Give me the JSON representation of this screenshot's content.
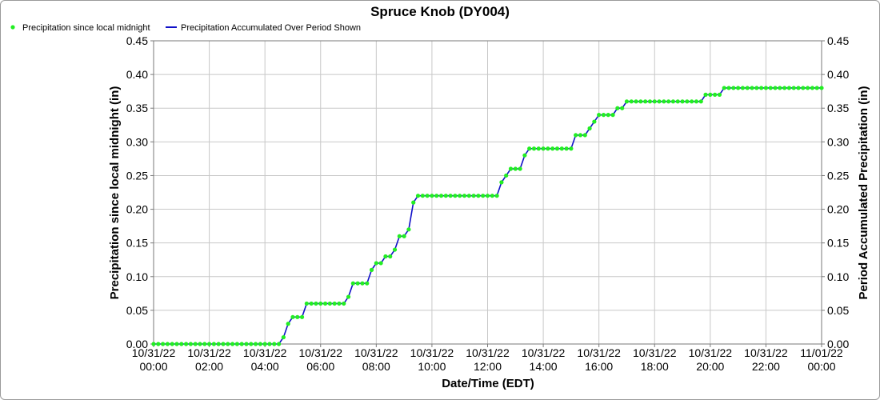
{
  "chart_data": {
    "type": "line",
    "title": "Spruce Knob (DY004)",
    "xlabel": "Date/Time (EDT)",
    "ylabel": "Precipitation since local midnight (in)",
    "y2label": "Period Accumulated Precipitation (in)",
    "ylim": [
      0,
      0.45
    ],
    "y2lim": [
      0,
      0.45
    ],
    "grid": true,
    "legend_position": "top-left",
    "y_ticks": [
      "0.00",
      "0.05",
      "0.10",
      "0.15",
      "0.20",
      "0.25",
      "0.30",
      "0.35",
      "0.40",
      "0.45"
    ],
    "x_ticks": [
      {
        "date": "10/31/22",
        "time": "00:00"
      },
      {
        "date": "10/31/22",
        "time": "02:00"
      },
      {
        "date": "10/31/22",
        "time": "04:00"
      },
      {
        "date": "10/31/22",
        "time": "06:00"
      },
      {
        "date": "10/31/22",
        "time": "08:00"
      },
      {
        "date": "10/31/22",
        "time": "10:00"
      },
      {
        "date": "10/31/22",
        "time": "12:00"
      },
      {
        "date": "10/31/22",
        "time": "14:00"
      },
      {
        "date": "10/31/22",
        "time": "16:00"
      },
      {
        "date": "10/31/22",
        "time": "18:00"
      },
      {
        "date": "10/31/22",
        "time": "20:00"
      },
      {
        "date": "10/31/22",
        "time": "22:00"
      },
      {
        "date": "11/01/22",
        "time": "00:00"
      }
    ],
    "series": [
      {
        "name": "Precipitation since local midnight",
        "style": "markers",
        "color": "#22ee22",
        "points": [
          [
            "00:00",
            0
          ],
          [
            "00:10",
            0
          ],
          [
            "00:20",
            0
          ],
          [
            "00:30",
            0
          ],
          [
            "00:40",
            0
          ],
          [
            "00:50",
            0
          ],
          [
            "01:00",
            0
          ],
          [
            "01:10",
            0
          ],
          [
            "01:20",
            0
          ],
          [
            "01:30",
            0
          ],
          [
            "01:40",
            0
          ],
          [
            "01:50",
            0
          ],
          [
            "02:00",
            0
          ],
          [
            "02:10",
            0
          ],
          [
            "02:20",
            0
          ],
          [
            "02:30",
            0
          ],
          [
            "02:40",
            0
          ],
          [
            "02:50",
            0
          ],
          [
            "03:00",
            0
          ],
          [
            "03:10",
            0
          ],
          [
            "03:20",
            0
          ],
          [
            "03:30",
            0
          ],
          [
            "03:40",
            0
          ],
          [
            "03:50",
            0
          ],
          [
            "04:00",
            0
          ],
          [
            "04:10",
            0
          ],
          [
            "04:20",
            0
          ],
          [
            "04:30",
            0
          ],
          [
            "04:40",
            0.01
          ],
          [
            "04:50",
            0.03
          ],
          [
            "05:00",
            0.04
          ],
          [
            "05:10",
            0.04
          ],
          [
            "05:20",
            0.04
          ],
          [
            "05:30",
            0.06
          ],
          [
            "05:40",
            0.06
          ],
          [
            "05:50",
            0.06
          ],
          [
            "06:00",
            0.06
          ],
          [
            "06:10",
            0.06
          ],
          [
            "06:20",
            0.06
          ],
          [
            "06:30",
            0.06
          ],
          [
            "06:40",
            0.06
          ],
          [
            "06:50",
            0.06
          ],
          [
            "07:00",
            0.07
          ],
          [
            "07:10",
            0.09
          ],
          [
            "07:20",
            0.09
          ],
          [
            "07:30",
            0.09
          ],
          [
            "07:40",
            0.09
          ],
          [
            "07:50",
            0.11
          ],
          [
            "08:00",
            0.12
          ],
          [
            "08:10",
            0.12
          ],
          [
            "08:20",
            0.13
          ],
          [
            "08:30",
            0.13
          ],
          [
            "08:40",
            0.14
          ],
          [
            "08:50",
            0.16
          ],
          [
            "09:00",
            0.16
          ],
          [
            "09:10",
            0.17
          ],
          [
            "09:20",
            0.21
          ],
          [
            "09:30",
            0.22
          ],
          [
            "09:40",
            0.22
          ],
          [
            "09:50",
            0.22
          ],
          [
            "10:00",
            0.22
          ],
          [
            "10:10",
            0.22
          ],
          [
            "10:20",
            0.22
          ],
          [
            "10:30",
            0.22
          ],
          [
            "10:40",
            0.22
          ],
          [
            "10:50",
            0.22
          ],
          [
            "11:00",
            0.22
          ],
          [
            "11:10",
            0.22
          ],
          [
            "11:20",
            0.22
          ],
          [
            "11:30",
            0.22
          ],
          [
            "11:40",
            0.22
          ],
          [
            "11:50",
            0.22
          ],
          [
            "12:00",
            0.22
          ],
          [
            "12:10",
            0.22
          ],
          [
            "12:20",
            0.22
          ],
          [
            "12:30",
            0.24
          ],
          [
            "12:40",
            0.25
          ],
          [
            "12:50",
            0.26
          ],
          [
            "13:00",
            0.26
          ],
          [
            "13:10",
            0.26
          ],
          [
            "13:20",
            0.28
          ],
          [
            "13:30",
            0.29
          ],
          [
            "13:40",
            0.29
          ],
          [
            "13:50",
            0.29
          ],
          [
            "14:00",
            0.29
          ],
          [
            "14:10",
            0.29
          ],
          [
            "14:20",
            0.29
          ],
          [
            "14:30",
            0.29
          ],
          [
            "14:40",
            0.29
          ],
          [
            "14:50",
            0.29
          ],
          [
            "15:00",
            0.29
          ],
          [
            "15:10",
            0.31
          ],
          [
            "15:20",
            0.31
          ],
          [
            "15:30",
            0.31
          ],
          [
            "15:40",
            0.32
          ],
          [
            "15:50",
            0.33
          ],
          [
            "16:00",
            0.34
          ],
          [
            "16:10",
            0.34
          ],
          [
            "16:20",
            0.34
          ],
          [
            "16:30",
            0.34
          ],
          [
            "16:40",
            0.35
          ],
          [
            "16:50",
            0.35
          ],
          [
            "17:00",
            0.36
          ],
          [
            "17:10",
            0.36
          ],
          [
            "17:20",
            0.36
          ],
          [
            "17:30",
            0.36
          ],
          [
            "17:40",
            0.36
          ],
          [
            "17:50",
            0.36
          ],
          [
            "18:00",
            0.36
          ],
          [
            "18:10",
            0.36
          ],
          [
            "18:20",
            0.36
          ],
          [
            "18:30",
            0.36
          ],
          [
            "18:40",
            0.36
          ],
          [
            "18:50",
            0.36
          ],
          [
            "19:00",
            0.36
          ],
          [
            "19:10",
            0.36
          ],
          [
            "19:20",
            0.36
          ],
          [
            "19:30",
            0.36
          ],
          [
            "19:40",
            0.36
          ],
          [
            "19:50",
            0.37
          ],
          [
            "20:00",
            0.37
          ],
          [
            "20:10",
            0.37
          ],
          [
            "20:20",
            0.37
          ],
          [
            "20:30",
            0.38
          ],
          [
            "20:40",
            0.38
          ],
          [
            "20:50",
            0.38
          ],
          [
            "21:00",
            0.38
          ],
          [
            "21:10",
            0.38
          ],
          [
            "21:20",
            0.38
          ],
          [
            "21:30",
            0.38
          ],
          [
            "21:40",
            0.38
          ],
          [
            "21:50",
            0.38
          ],
          [
            "22:00",
            0.38
          ],
          [
            "22:10",
            0.38
          ],
          [
            "22:20",
            0.38
          ],
          [
            "22:30",
            0.38
          ],
          [
            "22:40",
            0.38
          ],
          [
            "22:50",
            0.38
          ],
          [
            "23:00",
            0.38
          ],
          [
            "23:10",
            0.38
          ],
          [
            "23:20",
            0.38
          ],
          [
            "23:30",
            0.38
          ],
          [
            "23:40",
            0.38
          ],
          [
            "23:50",
            0.38
          ],
          [
            "24:00",
            0.38
          ]
        ]
      },
      {
        "name": "Precipitation Accumulated Over Period Shown",
        "style": "line",
        "color": "#1010c8",
        "same_points_as_series": 0
      }
    ]
  }
}
